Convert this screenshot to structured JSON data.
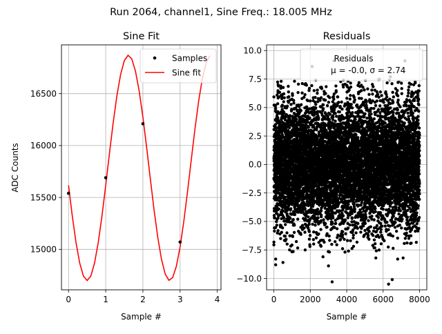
{
  "figure": {
    "suptitle": "Run 2064, channel1, Sine Freq.: 18.005 MHz"
  },
  "chart_data": [
    {
      "type": "line",
      "title": "Sine Fit",
      "xlabel": "Sample #",
      "ylabel": "ADC Counts",
      "xlim": [
        -0.19,
        4.1
      ],
      "ylim": [
        14610,
        16970
      ],
      "xticks": [
        0,
        1,
        2,
        3,
        4
      ],
      "xtick_labels": [
        "0",
        "1",
        "2",
        "3",
        "4"
      ],
      "yticks": [
        15000,
        15500,
        16000,
        16500
      ],
      "ytick_labels": [
        "15000",
        "15500",
        "16000",
        "16500"
      ],
      "grid": true,
      "legend": {
        "location": "top-right",
        "entries": [
          "Samples",
          "Sine fit"
        ]
      },
      "fit": {
        "offset": 15785,
        "amplitude": 1085,
        "period_samples": 2.22,
        "peak_x": 1.61
      },
      "samples": {
        "x": [
          0,
          1,
          2,
          3
        ],
        "y": [
          15540,
          15690,
          16210,
          15070
        ]
      },
      "fit_colour": "#ff0000",
      "sample_colour": "#000000"
    },
    {
      "type": "scatter",
      "title": "Residuals",
      "xlabel": "Sample #",
      "ylabel": "",
      "xlim": [
        -400,
        8400
      ],
      "ylim": [
        -11.0,
        10.5
      ],
      "xticks": [
        0,
        2000,
        4000,
        6000,
        8000
      ],
      "xtick_labels": [
        "0",
        "2000",
        "4000",
        "6000",
        "8000"
      ],
      "yticks": [
        -10.0,
        -7.5,
        -5.0,
        -2.5,
        0.0,
        2.5,
        5.0,
        7.5,
        10.0
      ],
      "ytick_labels": [
        "−10.0",
        "−7.5",
        "−5.0",
        "−2.5",
        "0.0",
        "2.5",
        "5.0",
        "7.5",
        "10.0"
      ],
      "grid": true,
      "legend": {
        "location": "top-right",
        "title": "Residuals",
        "stats": "μ = -0.0, σ = 2.74"
      },
      "n_points": 8000,
      "mean": 0.0,
      "sigma": 2.74,
      "outliers": [
        {
          "x": 2100,
          "y": 8.6
        },
        {
          "x": 3300,
          "y": 9.1
        },
        {
          "x": 7200,
          "y": 9.1
        },
        {
          "x": 6400,
          "y": 7.7
        },
        {
          "x": 400,
          "y": 7.3
        },
        {
          "x": 3200,
          "y": -10.3
        },
        {
          "x": 6300,
          "y": -10.5
        },
        {
          "x": 6500,
          "y": -10.1
        },
        {
          "x": 100,
          "y": -8.3
        },
        {
          "x": 100,
          "y": -8.8
        },
        {
          "x": 500,
          "y": -8.6
        },
        {
          "x": 3000,
          "y": -8.9
        },
        {
          "x": 5600,
          "y": -8.2
        },
        {
          "x": 6800,
          "y": -8.3
        },
        {
          "x": 2700,
          "y": -8.1
        },
        {
          "x": 7100,
          "y": -8.2
        },
        {
          "x": 4100,
          "y": -7.6
        },
        {
          "x": 5500,
          "y": -7.3
        }
      ],
      "point_colour": "#000000"
    }
  ]
}
